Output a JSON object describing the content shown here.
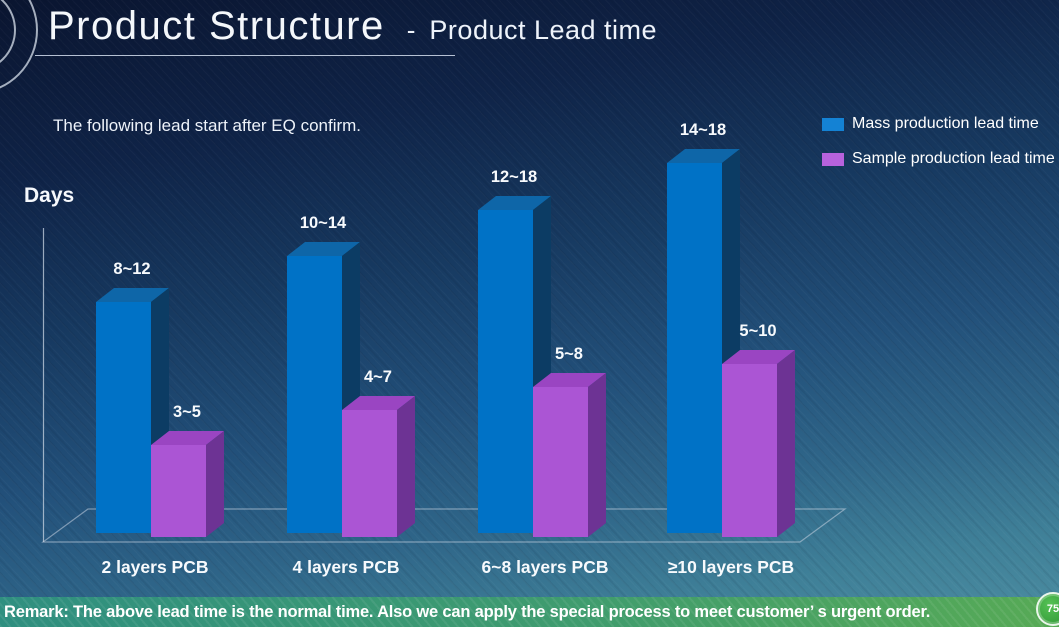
{
  "slide": {
    "title": "Product Structure",
    "title_separator": "-",
    "subtitle_title": "Product Lead time",
    "lead_note": "The following lead start after EQ confirm.",
    "axis_label": "Days",
    "remark": "Remark: The above lead time is the normal time. Also we can apply the special process to meet customer’ s urgent order.",
    "page_number": "75"
  },
  "legend": {
    "position": "top-right",
    "items": [
      {
        "label": "Mass production lead time",
        "color": "#1482d4"
      },
      {
        "label": "Sample production lead time",
        "color": "#b762dd"
      }
    ]
  },
  "chart_data": {
    "type": "bar",
    "style": "3d-column",
    "title": "Product Lead time",
    "ylabel": "Days",
    "xlabel": "",
    "grid": false,
    "legend_position": "top-right",
    "unit": "days",
    "categories": [
      "2 layers PCB",
      "4 layers PCB",
      "6~8 layers PCB",
      "≥10 layers PCB"
    ],
    "series": [
      {
        "name": "Mass production lead time",
        "range_labels": [
          "8~12",
          "10~14",
          "12~18",
          "14~18"
        ],
        "plotted_values": [
          10,
          12,
          14,
          16
        ],
        "colors": {
          "front": "#0072c6",
          "top": "#0e66a8",
          "side": "#0c3c64"
        }
      },
      {
        "name": "Sample production lead time",
        "range_labels": [
          "3~5",
          "4~7",
          "5~8",
          "5~10"
        ],
        "plotted_values": [
          4,
          5.5,
          6.5,
          7.5
        ],
        "colors": {
          "front": "#ab55d4",
          "top": "#9a45c2",
          "side": "#6d3394"
        }
      }
    ]
  }
}
